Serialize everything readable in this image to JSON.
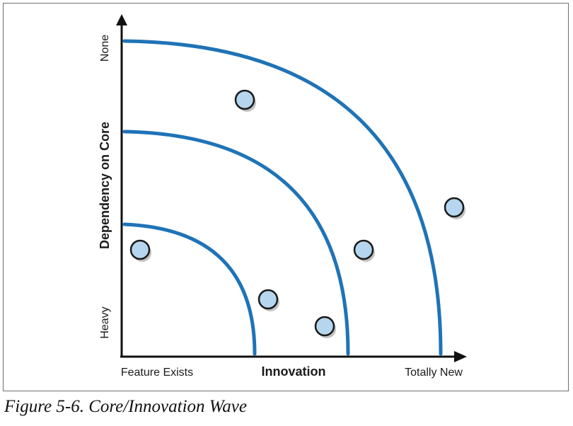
{
  "diagram": {
    "y_axis": {
      "title": "Dependency on Core",
      "top_label": "None",
      "bottom_label": "Heavy"
    },
    "x_axis": {
      "title": "Innovation",
      "left_label": "Feature Exists",
      "right_label": "Totally New"
    },
    "colors": {
      "wave": "#1f73b7",
      "dot_fill": "#b5d6ee",
      "dot_stroke": "#1a1a1a",
      "axis": "#111111"
    }
  },
  "caption": "Figure 5-6. Core/Innovation Wave"
}
